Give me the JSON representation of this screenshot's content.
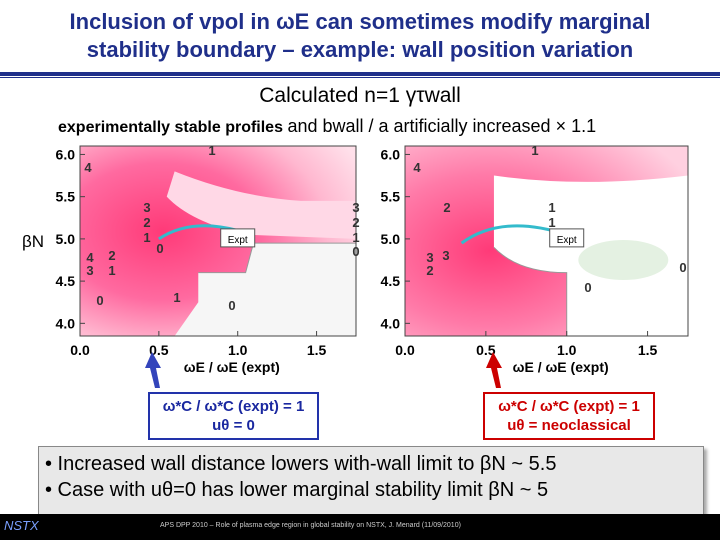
{
  "slide": {
    "title_line1": "Inclusion of vpol in ωE can sometimes modify marginal",
    "title_line2": "stability boundary – example: wall position variation",
    "subtitle": "Calculated n=1 γτwall",
    "caption_bold": "experimentally stable profiles",
    "caption_rest": "and bwall / a artificially increased × 1.1",
    "ylabel": "βN",
    "legend_left_line1": "ω*C / ω*C (expt) = 1",
    "legend_left_line2": "uθ = 0",
    "legend_right_line1": "ω*C / ω*C (expt) = 1",
    "legend_right_line2": "uθ = neoclassical",
    "bullet1": "• Increased wall distance lowers with-wall limit to βN ~ 5.5",
    "bullet2": "• Case with uθ=0 has lower marginal stability limit βN ~ 5",
    "footer_logo": "NSTX",
    "footer_text": "APS DPP 2010 – Role of plasma edge region in global stability on NSTX, J. Menard (11/09/2010)",
    "accent_color": "#1f2f8a"
  },
  "chart_data": [
    {
      "type": "heatmap",
      "panel": "left",
      "x_range": [
        0.0,
        1.75
      ],
      "y_range": [
        3.85,
        6.1
      ],
      "x_ticks": [
        "0.0",
        "0.5",
        "1.0",
        "1.5"
      ],
      "y_ticks": [
        "4.0",
        "4.5",
        "5.0",
        "5.5",
        "6.0"
      ],
      "xlabel": "ωE / ωE (expt)",
      "marker_label": "Expt",
      "marker": [
        1.0,
        5.0
      ],
      "contour_labels": [
        "1",
        "4",
        "3",
        "2",
        "1",
        "0",
        "3",
        "2",
        "1",
        "0",
        "2",
        "1",
        "0",
        "4",
        "3",
        "1",
        "0"
      ]
    },
    {
      "type": "heatmap",
      "panel": "right",
      "x_range": [
        0.0,
        1.75
      ],
      "y_range": [
        3.85,
        6.1
      ],
      "x_ticks": [
        "0.0",
        "0.5",
        "1.0",
        "1.5"
      ],
      "y_ticks": [
        "4.0",
        "4.5",
        "5.0",
        "5.5",
        "6.0"
      ],
      "xlabel": "ωE / ωE (expt)",
      "marker_label": "Expt",
      "marker": [
        1.0,
        5.0
      ],
      "contour_labels": [
        "1",
        "4",
        "2",
        "3",
        "3",
        "2",
        "1",
        "1",
        "3",
        "0",
        "0"
      ]
    }
  ]
}
